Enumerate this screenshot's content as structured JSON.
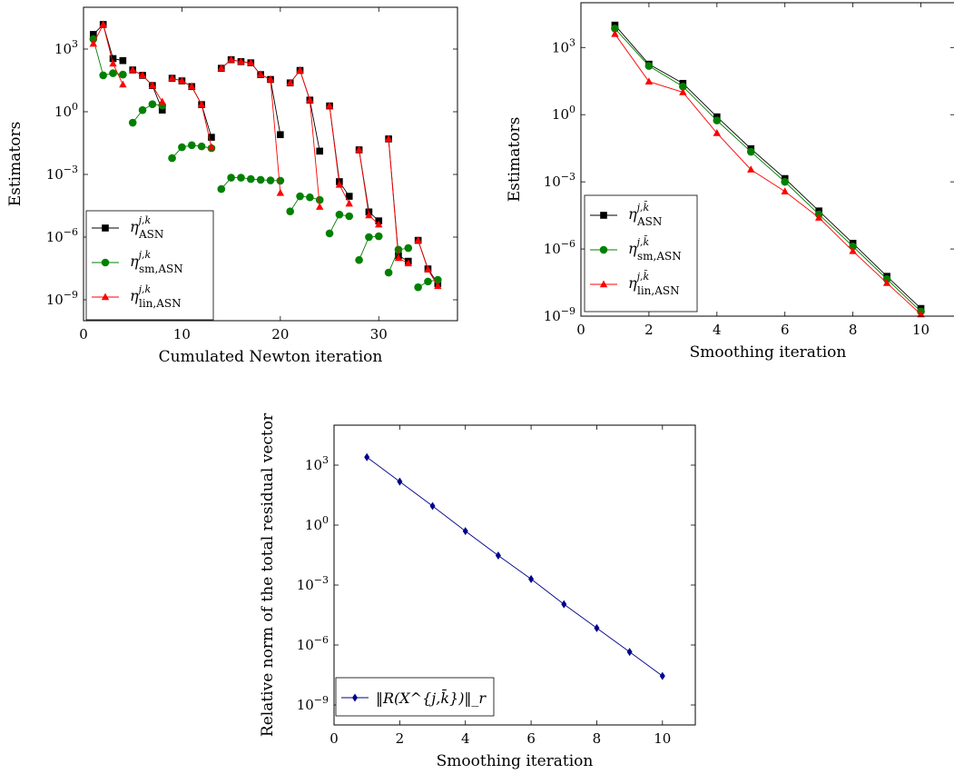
{
  "charts": [
    {
      "chart_data": {
        "type": "line",
        "yscale": "log",
        "xlabel": "Cumulated Newton iteration",
        "ylabel": "Estimators",
        "xlim": [
          0,
          38
        ],
        "ylim": [
          1e-10,
          100000.0
        ],
        "xticks": [
          0,
          10,
          20,
          30
        ],
        "yticks": [
          1e-09,
          1e-06,
          0.001,
          1.0,
          1000.0
        ],
        "ytick_labels": [
          "10^-9",
          "10^-6",
          "10^-3",
          "10^0",
          "10^3"
        ],
        "legend_position": "bottom-left",
        "grid": false,
        "series": [
          {
            "legend": {
              "base": "η",
              "sup": "j,k",
              "sub": "ASN"
            },
            "color": "#000000",
            "marker": "square",
            "segments": [
              [
                [
                  1,
                  5000
                ],
                [
                  2,
                  15000
                ],
                [
                  3,
                  350
                ],
                [
                  4,
                  280
                ]
              ],
              [
                [
                  5,
                  100
                ],
                [
                  6,
                  55
                ],
                [
                  7,
                  18
                ],
                [
                  8,
                  1.2
                ]
              ],
              [
                [
                  9,
                  40
                ],
                [
                  10,
                  30
                ],
                [
                  11,
                  16
                ],
                [
                  12,
                  2.2
                ],
                [
                  13,
                  0.06
                ]
              ],
              [
                [
                  14,
                  120
                ],
                [
                  15,
                  310
                ],
                [
                  16,
                  250
                ],
                [
                  17,
                  220
                ],
                [
                  18,
                  60
                ],
                [
                  19,
                  35
                ],
                [
                  20,
                  0.08
                ]
              ],
              [
                [
                  21,
                  24
                ],
                [
                  22,
                  95
                ],
                [
                  23,
                  3.6
                ],
                [
                  24,
                  0.013
                ]
              ],
              [
                [
                  25,
                  1.9
                ],
                [
                  26,
                  0.00045
                ],
                [
                  27,
                  9e-05
                ]
              ],
              [
                [
                  28,
                  0.015
                ],
                [
                  29,
                  1.6e-05
                ],
                [
                  30,
                  6e-06
                ]
              ],
              [
                [
                  31,
                  0.05
                ],
                [
                  32,
                  1.3e-07
                ],
                [
                  33,
                  7e-08
                ]
              ],
              [
                [
                  34,
                  7e-07
                ],
                [
                  35,
                  3e-08
                ],
                [
                  36,
                  6e-09
                ]
              ]
            ]
          },
          {
            "legend": {
              "base": "η",
              "sup": "j,k",
              "sub": "sm,ASN"
            },
            "color": "#008000",
            "marker": "circle",
            "segments": [
              [
                [
                  1,
                  3000
                ],
                [
                  2,
                  55
                ],
                [
                  3,
                  70
                ],
                [
                  4,
                  60
                ]
              ],
              [
                [
                  5,
                  0.3
                ],
                [
                  6,
                  1.2
                ],
                [
                  7,
                  2.3
                ],
                [
                  8,
                  2.0
                ]
              ],
              [
                [
                  9,
                  0.006
                ],
                [
                  10,
                  0.02
                ],
                [
                  11,
                  0.025
                ],
                [
                  12,
                  0.022
                ],
                [
                  13,
                  0.018
                ]
              ],
              [
                [
                  14,
                  0.0002
                ],
                [
                  15,
                  0.0007
                ],
                [
                  16,
                  0.0007
                ],
                [
                  17,
                  0.0006
                ],
                [
                  18,
                  0.00055
                ],
                [
                  19,
                  0.00052
                ],
                [
                  20,
                  0.0005
                ]
              ],
              [
                [
                  21,
                  1.7e-05
                ],
                [
                  22,
                  9e-05
                ],
                [
                  23,
                  8e-05
                ],
                [
                  24,
                  6e-05
                ]
              ],
              [
                [
                  25,
                  1.5e-06
                ],
                [
                  26,
                  1.2e-05
                ],
                [
                  27,
                  1e-05
                ]
              ],
              [
                [
                  28,
                  8e-08
                ],
                [
                  29,
                  1e-06
                ],
                [
                  30,
                  1.1e-06
                ]
              ],
              [
                [
                  31,
                  2e-08
                ],
                [
                  32,
                  2.5e-07
                ],
                [
                  33,
                  3e-07
                ]
              ],
              [
                [
                  34,
                  4e-09
                ],
                [
                  35,
                  7.5e-09
                ],
                [
                  36,
                  9e-09
                ]
              ]
            ]
          },
          {
            "legend": {
              "base": "η",
              "sup": "j,k",
              "sub": "lin,ASN"
            },
            "color": "#ff0000",
            "marker": "triangle",
            "segments": [
              [
                [
                  1,
                  1800
                ],
                [
                  2,
                  15000
                ],
                [
                  3,
                  200
                ],
                [
                  4,
                  20
                ]
              ],
              [
                [
                  5,
                  100
                ],
                [
                  6,
                  55
                ],
                [
                  7,
                  18
                ],
                [
                  8,
                  3
                ]
              ],
              [
                [
                  9,
                  40
                ],
                [
                  10,
                  30
                ],
                [
                  11,
                  16
                ],
                [
                  12,
                  2.2
                ],
                [
                  13,
                  0.02
                ]
              ],
              [
                [
                  14,
                  120
                ],
                [
                  15,
                  310
                ],
                [
                  16,
                  250
                ],
                [
                  17,
                  220
                ],
                [
                  18,
                  60
                ],
                [
                  19,
                  35
                ],
                [
                  20,
                  0.00013
                ]
              ],
              [
                [
                  21,
                  24
                ],
                [
                  22,
                  95
                ],
                [
                  23,
                  3.6
                ],
                [
                  24,
                  2.8e-05
                ]
              ],
              [
                [
                  25,
                  1.9
                ],
                [
                  26,
                  0.00032
                ],
                [
                  27,
                  4e-05
                ]
              ],
              [
                [
                  28,
                  0.015
                ],
                [
                  29,
                  1.1e-05
                ],
                [
                  30,
                  4e-06
                ]
              ],
              [
                [
                  31,
                  0.05
                ],
                [
                  32,
                  1e-07
                ],
                [
                  33,
                  5.5e-08
                ]
              ],
              [
                [
                  34,
                  7e-07
                ],
                [
                  35,
                  2.8e-08
                ],
                [
                  36,
                  4.5e-09
                ]
              ]
            ]
          }
        ]
      }
    },
    {
      "chart_data": {
        "type": "line",
        "yscale": "log",
        "xlabel": "Smoothing iteration",
        "ylabel": "Estimators",
        "xlim": [
          0,
          11
        ],
        "ylim": [
          1e-09,
          100000.0
        ],
        "xticks": [
          0,
          2,
          4,
          6,
          8,
          10
        ],
        "yticks": [
          1e-09,
          1e-06,
          0.001,
          1.0,
          1000.0
        ],
        "ytick_labels": [
          "10^-9",
          "10^-6",
          "10^-3",
          "10^0",
          "10^3"
        ],
        "legend_position": "bottom-left",
        "grid": false,
        "series": [
          {
            "legend": {
              "base": "η",
              "sup": "j,k̄",
              "sub": "ASN"
            },
            "color": "#000000",
            "marker": "square",
            "x": [
              1,
              2,
              3,
              4,
              5,
              6,
              7,
              8,
              9,
              10
            ],
            "y": [
              10000,
              180,
              25,
              0.8,
              0.03,
              0.0014,
              5e-05,
              1.8e-06,
              6e-08,
              2.2e-09
            ]
          },
          {
            "legend": {
              "base": "η",
              "sup": "j,k̄",
              "sub": "sm,ASN"
            },
            "color": "#008000",
            "marker": "circle",
            "x": [
              1,
              2,
              3,
              4,
              5,
              6,
              7,
              8,
              9,
              10
            ],
            "y": [
              7000,
              150,
              18,
              0.55,
              0.022,
              0.001,
              3.5e-05,
              1.3e-06,
              4.5e-08,
              1.6e-09
            ]
          },
          {
            "legend": {
              "base": "η",
              "sup": "j,k̄",
              "sub": "lin,ASN"
            },
            "color": "#ff0000",
            "marker": "triangle",
            "x": [
              1,
              2,
              3,
              4,
              5,
              6,
              7,
              8,
              9,
              10
            ],
            "y": [
              4000,
              30,
              10,
              0.15,
              0.0035,
              0.00037,
              2.5e-05,
              8e-07,
              3e-08,
              1.2e-09
            ]
          }
        ]
      }
    },
    {
      "chart_data": {
        "type": "line",
        "yscale": "log",
        "xlabel": "Smoothing iteration",
        "ylabel": "Relative norm of the total residual vector",
        "xlim": [
          0,
          11
        ],
        "ylim": [
          1e-10,
          100000.0
        ],
        "xticks": [
          0,
          2,
          4,
          6,
          8,
          10
        ],
        "yticks": [
          1e-09,
          1e-06,
          0.001,
          1.0,
          1000.0
        ],
        "ytick_labels": [
          "10^-9",
          "10^-6",
          "10^-3",
          "10^0",
          "10^3"
        ],
        "legend_position": "bottom-left",
        "grid": false,
        "series": [
          {
            "legend": {
              "text": "‖R(X^{j,k̄})‖_r"
            },
            "color": "#00008b",
            "marker": "diamond",
            "x": [
              1,
              2,
              3,
              4,
              5,
              6,
              7,
              8,
              9,
              10
            ],
            "y": [
              2500,
              150,
              9,
              0.5,
              0.03,
              0.002,
              0.00011,
              7e-06,
              4.5e-07,
              2.8e-08
            ]
          }
        ]
      }
    }
  ],
  "legend_labels": {
    "p1": [
      "ASN",
      "sm,ASN",
      "lin,ASN"
    ],
    "p3": "‖R(X^{j,k̄})‖_r"
  }
}
